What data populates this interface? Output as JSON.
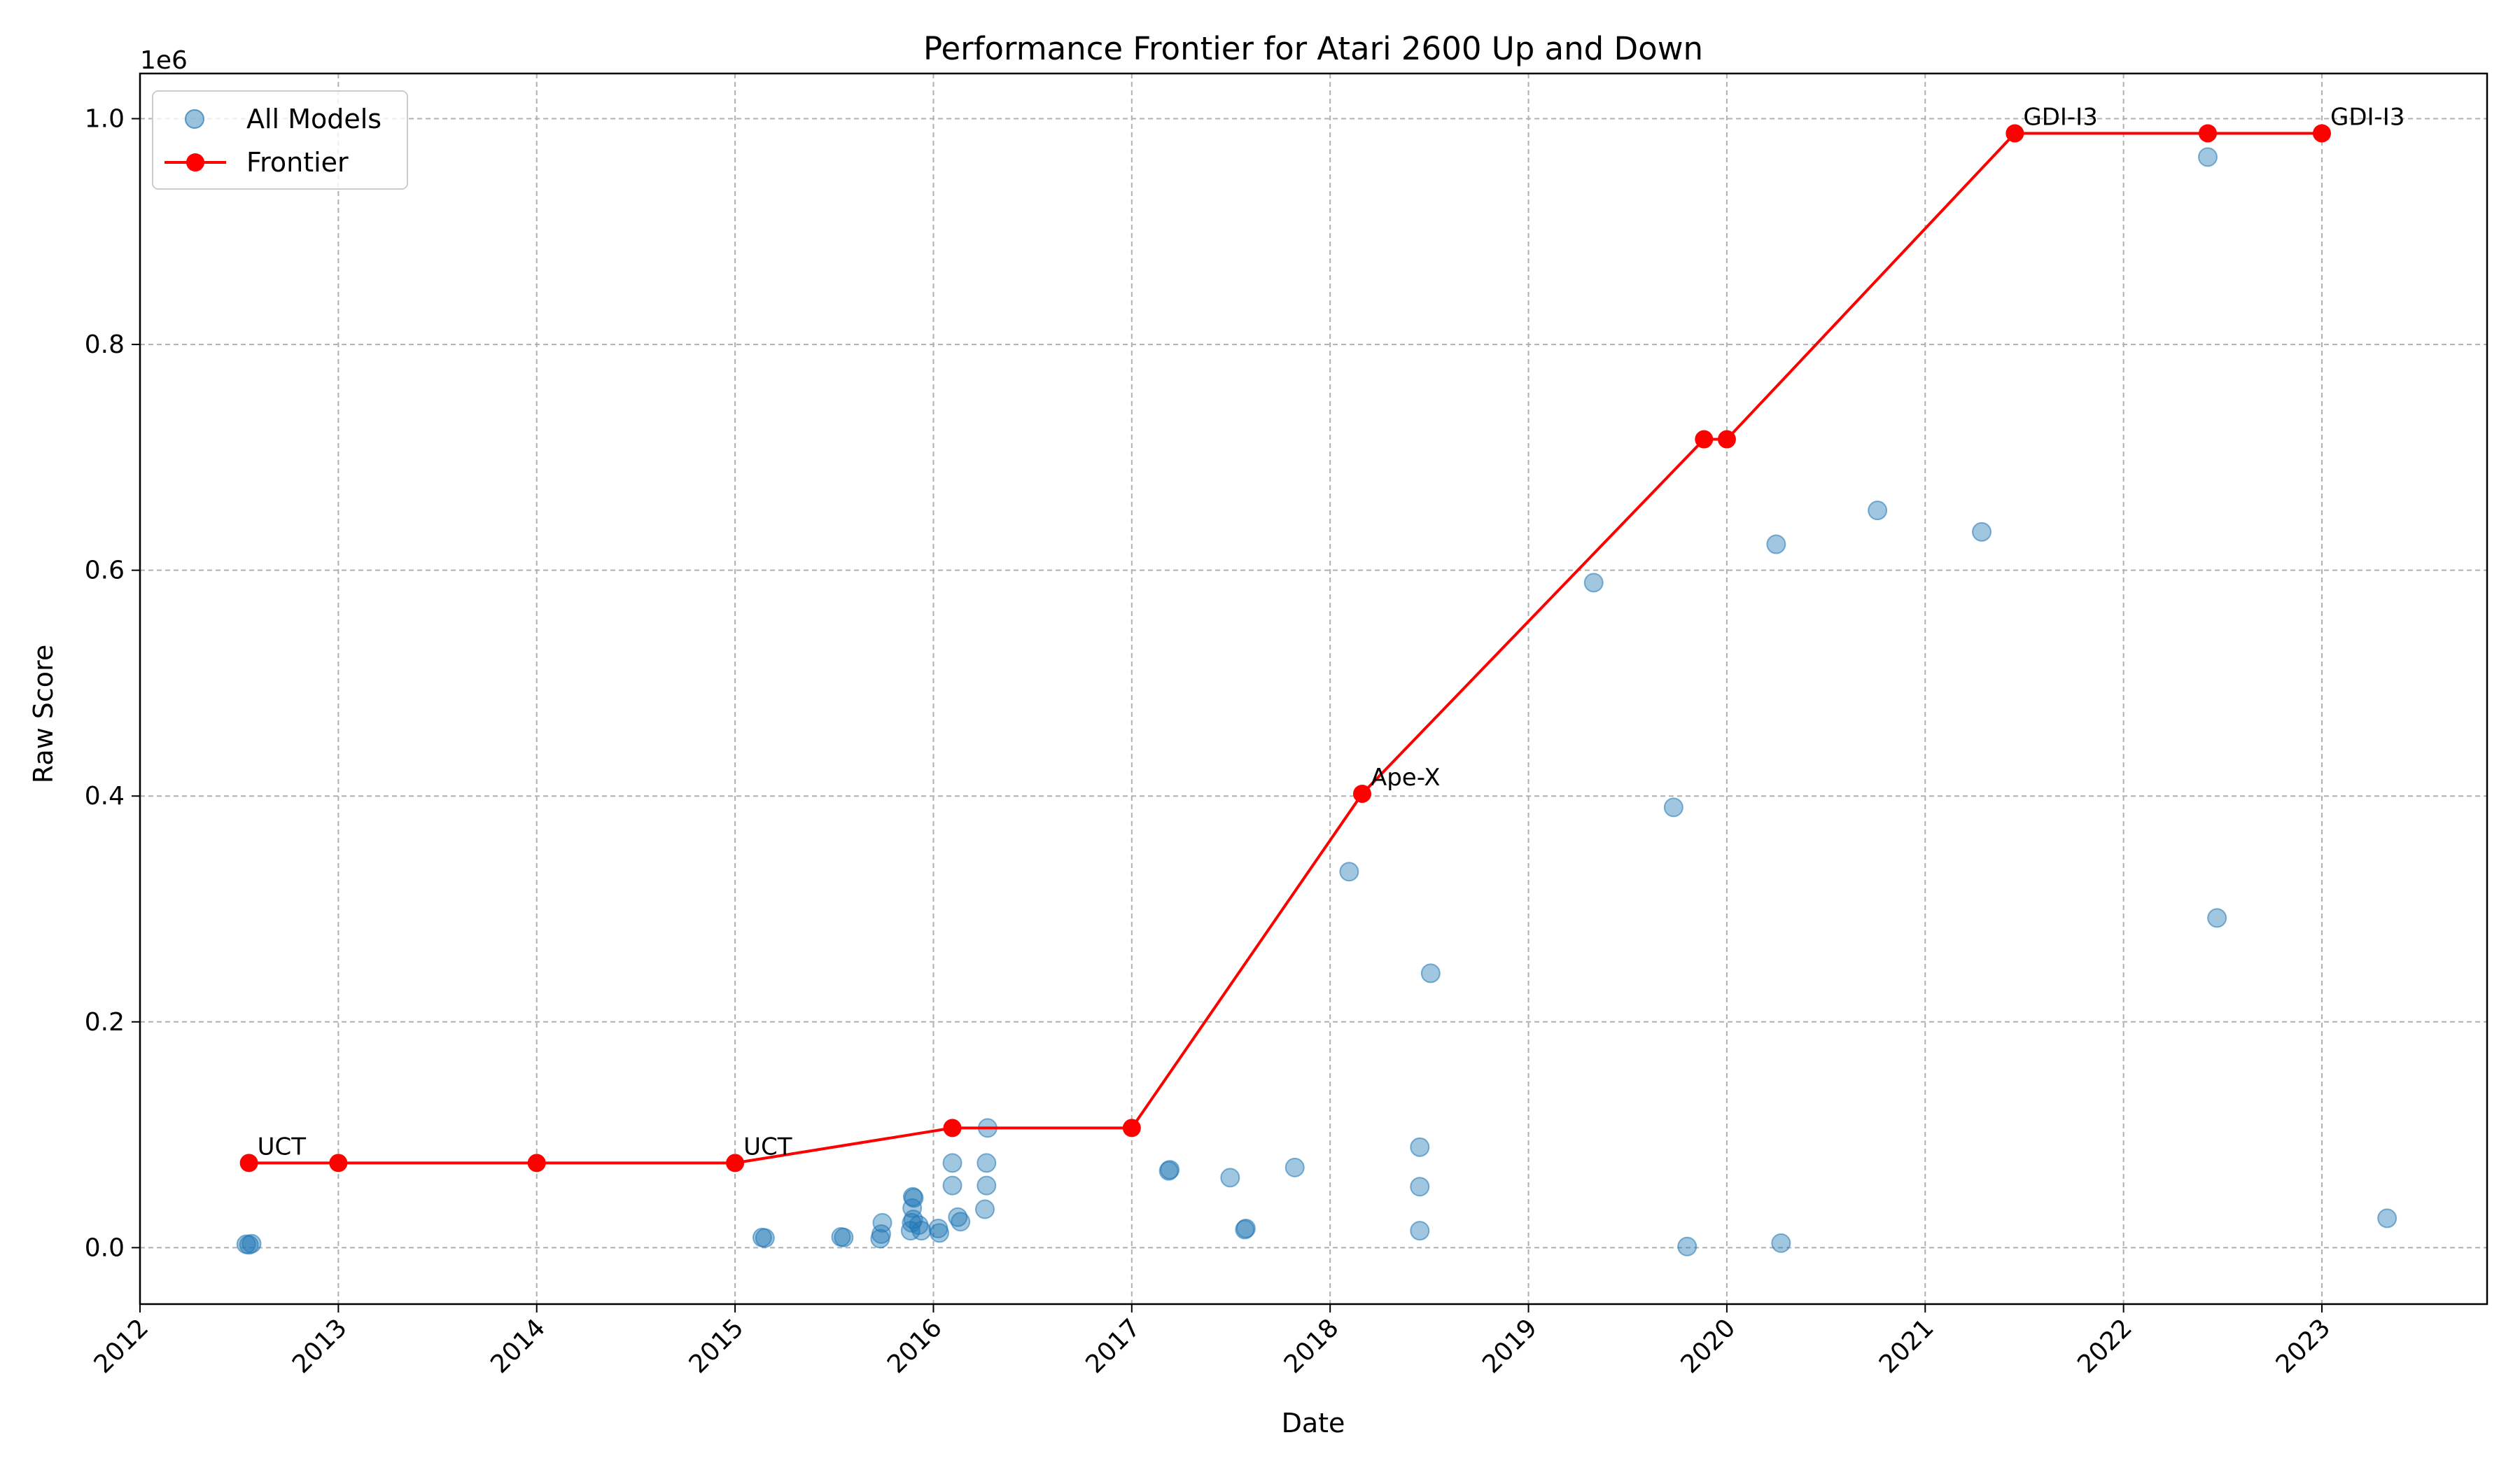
{
  "chart_data": {
    "type": "scatter",
    "title": "Performance Frontier for Atari 2600 Up and Down",
    "xlabel": "Date",
    "ylabel": "Raw Score",
    "y_offset_text": "1e6",
    "xlim": [
      "2012-01-01",
      "2023-11-01"
    ],
    "ylim": [
      -50000,
      1040000
    ],
    "x_ticks": [
      "2012-01-01",
      "2013-01-01",
      "2014-01-01",
      "2015-01-01",
      "2016-01-01",
      "2017-01-01",
      "2018-01-01",
      "2019-01-01",
      "2020-01-01",
      "2021-01-01",
      "2022-01-01",
      "2023-01-01"
    ],
    "x_tick_labels": [
      "2012",
      "2013",
      "2014",
      "2015",
      "2016",
      "2017",
      "2018",
      "2019",
      "2020",
      "2021",
      "2022",
      "2023"
    ],
    "y_ticks": [
      0,
      200000,
      400000,
      600000,
      800000,
      1000000
    ],
    "y_tick_labels": [
      "0.0",
      "0.2",
      "0.4",
      "0.6",
      "0.8",
      "1.0"
    ],
    "grid": true,
    "legend_position": "top-left",
    "legend": [
      "All Models",
      "Frontier"
    ],
    "colors": {
      "scatter": "#1f77b4",
      "frontier": "#ff0000"
    },
    "series": [
      {
        "name": "All Models",
        "type": "scatter",
        "points": [
          [
            "2012-07-15",
            3000
          ],
          [
            "2012-07-20",
            2500
          ],
          [
            "2012-07-25",
            3500
          ],
          [
            "2015-02-20",
            9000
          ],
          [
            "2015-02-25",
            8500
          ],
          [
            "2015-07-15",
            9500
          ],
          [
            "2015-07-20",
            9000
          ],
          [
            "2015-09-25",
            8000
          ],
          [
            "2015-09-27",
            12000
          ],
          [
            "2015-09-29",
            22000
          ],
          [
            "2015-11-20",
            15000
          ],
          [
            "2015-11-22",
            22000
          ],
          [
            "2015-11-25",
            25000
          ],
          [
            "2015-11-23",
            35000
          ],
          [
            "2015-11-24",
            45000
          ],
          [
            "2015-11-26",
            44000
          ],
          [
            "2015-12-05",
            20000
          ],
          [
            "2015-12-10",
            15000
          ],
          [
            "2016-01-10",
            17000
          ],
          [
            "2016-01-12",
            13000
          ],
          [
            "2016-02-05",
            55000
          ],
          [
            "2016-02-05",
            75000
          ],
          [
            "2016-02-15",
            27000
          ],
          [
            "2016-02-20",
            23000
          ],
          [
            "2016-04-05",
            34000
          ],
          [
            "2016-04-08",
            55000
          ],
          [
            "2016-04-08",
            75000
          ],
          [
            "2016-04-10",
            106000
          ],
          [
            "2017-03-10",
            68000
          ],
          [
            "2017-03-12",
            69000
          ],
          [
            "2017-07-01",
            62000
          ],
          [
            "2017-07-28",
            16000
          ],
          [
            "2017-07-30",
            17000
          ],
          [
            "2017-10-28",
            71000
          ],
          [
            "2018-02-05",
            333000
          ],
          [
            "2018-06-15",
            89000
          ],
          [
            "2018-06-15",
            54000
          ],
          [
            "2018-06-15",
            15000
          ],
          [
            "2018-07-05",
            243000
          ],
          [
            "2019-05-01",
            589000
          ],
          [
            "2019-09-25",
            390000
          ],
          [
            "2019-10-20",
            1000
          ],
          [
            "2020-04-01",
            623000
          ],
          [
            "2020-04-10",
            4000
          ],
          [
            "2020-10-05",
            653000
          ],
          [
            "2021-04-15",
            634000
          ],
          [
            "2022-06-05",
            966000
          ],
          [
            "2022-06-22",
            292000
          ],
          [
            "2023-05-01",
            26000
          ]
        ]
      },
      {
        "name": "Frontier",
        "type": "line",
        "points": [
          [
            "2012-07-20",
            75000
          ],
          [
            "2013-01-01",
            75000
          ],
          [
            "2014-01-01",
            75000
          ],
          [
            "2015-01-01",
            75000
          ],
          [
            "2016-02-05",
            106000
          ],
          [
            "2017-01-01",
            106000
          ],
          [
            "2018-03-01",
            402000
          ],
          [
            "2019-11-20",
            716000
          ],
          [
            "2020-01-01",
            716000
          ],
          [
            "2021-06-15",
            987000
          ],
          [
            "2022-06-05",
            987000
          ],
          [
            "2023-01-01",
            987000
          ]
        ]
      }
    ],
    "annotations": [
      {
        "text": "UCT",
        "x": "2012-07-20",
        "y": 75000
      },
      {
        "text": "UCT",
        "x": "2015-01-01",
        "y": 75000
      },
      {
        "text": "Ape-X",
        "x": "2018-03-01",
        "y": 402000
      },
      {
        "text": "GDI-I3",
        "x": "2021-06-15",
        "y": 987000
      },
      {
        "text": "GDI-I3",
        "x": "2023-01-01",
        "y": 987000
      }
    ]
  }
}
